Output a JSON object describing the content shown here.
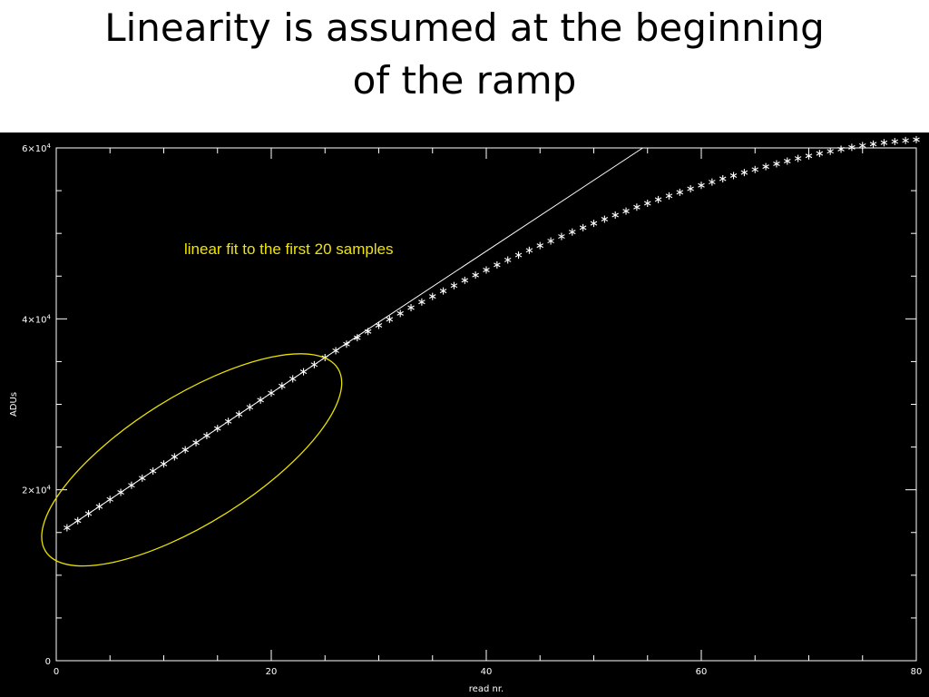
{
  "slide": {
    "title_line1": "Linearity is assumed at the beginning",
    "title_line2": "of the ramp"
  },
  "chart_data": {
    "type": "scatter",
    "title": "",
    "xlabel": "read nr.",
    "ylabel": "ADUs",
    "xlim": [
      0,
      80
    ],
    "ylim": [
      0,
      60000
    ],
    "x_ticks": [
      {
        "value": 0,
        "label": "0"
      },
      {
        "value": 20,
        "label": "20"
      },
      {
        "value": 40,
        "label": "40"
      },
      {
        "value": 60,
        "label": "60"
      },
      {
        "value": 80,
        "label": "80"
      }
    ],
    "y_ticks": [
      {
        "value": 0,
        "label": "0",
        "exp": ""
      },
      {
        "value": 20000,
        "label": "2×10",
        "exp": "4"
      },
      {
        "value": 40000,
        "label": "4×10",
        "exp": "4"
      },
      {
        "value": 60000,
        "label": "6×10",
        "exp": "4"
      }
    ],
    "x_minor_step": 5,
    "y_minor_step": 5000,
    "series": [
      {
        "marker": "asterisk",
        "x": [
          1,
          2,
          3,
          4,
          5,
          6,
          7,
          8,
          9,
          10,
          11,
          12,
          13,
          14,
          15,
          16,
          17,
          18,
          19,
          20,
          21,
          22,
          23,
          24,
          25,
          26,
          27,
          28,
          29,
          30,
          31,
          32,
          33,
          34,
          35,
          36,
          37,
          38,
          39,
          40,
          41,
          42,
          43,
          44,
          45,
          46,
          47,
          48,
          49,
          50,
          51,
          52,
          53,
          54,
          55,
          56,
          57,
          58,
          59,
          60,
          61,
          62,
          63,
          64,
          65,
          66,
          67,
          68,
          69,
          70,
          71,
          72,
          73,
          74,
          75,
          76,
          77,
          78,
          79,
          80
        ],
        "y": [
          15550,
          16380,
          17210,
          18040,
          18870,
          19700,
          20530,
          21360,
          22190,
          23020,
          23850,
          24680,
          25510,
          26340,
          27170,
          28000,
          28830,
          29660,
          30490,
          31320,
          32150,
          32980,
          33810,
          34640,
          35470,
          36270,
          37040,
          37790,
          38520,
          39240,
          39940,
          40630,
          41310,
          41970,
          42620,
          43260,
          43890,
          44510,
          45120,
          45720,
          46310,
          46890,
          47460,
          48020,
          48570,
          49110,
          49640,
          50160,
          50670,
          51170,
          51660,
          52140,
          52610,
          53070,
          53520,
          53960,
          54390,
          54810,
          55220,
          55620,
          56010,
          56390,
          56760,
          57120,
          57470,
          57810,
          58140,
          58460,
          58770,
          59070,
          59350,
          59610,
          59850,
          60070,
          60270,
          60450,
          60610,
          60750,
          60870,
          60970
        ]
      }
    ],
    "fit_line": {
      "label": "linear  fit to the first 20 samples",
      "slope": 830,
      "intercept": 14720
    },
    "highlight_ellipse": {
      "center_x": 12.6,
      "center_y": 23500,
      "color": "#e8e000"
    },
    "colors": {
      "background": "#000000",
      "foreground": "#ffffff",
      "annotation": "#f0e400"
    }
  }
}
